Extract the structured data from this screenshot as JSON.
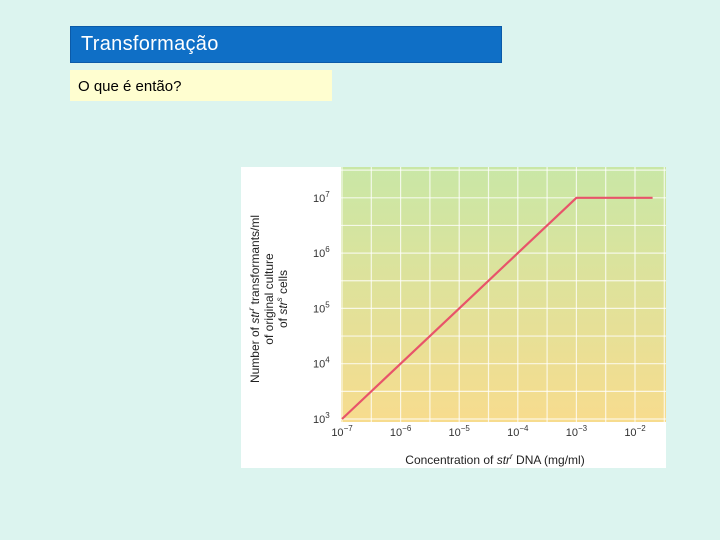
{
  "slide": {
    "title": "Transformação",
    "subtitle": "O que é então?"
  },
  "colors": {
    "background": "#dcf4ef",
    "title_bar": "#0f6fc6",
    "subtitle_box": "#fffed0",
    "line": "#e8546a",
    "plot_gradient_top": "#c9e7a6",
    "plot_gradient_bottom": "#f7dc8e"
  },
  "chart_data": {
    "type": "line",
    "title": "",
    "xlabel_parts": [
      "Concentration of ",
      "str",
      "r",
      " DNA (mg/ml)"
    ],
    "ylabel_lines": [
      [
        "Number of ",
        "str",
        "r",
        " transformants/ml"
      ],
      [
        "of original culture"
      ],
      [
        "of ",
        "str",
        "s",
        " cells"
      ]
    ],
    "x_scale": "log",
    "y_scale": "log",
    "x_ticks": [
      {
        "base": "10",
        "exp": "−7"
      },
      {
        "base": "10",
        "exp": "−6"
      },
      {
        "base": "10",
        "exp": "−5"
      },
      {
        "base": "10",
        "exp": "−4"
      },
      {
        "base": "10",
        "exp": "−3"
      },
      {
        "base": "10",
        "exp": "−2"
      }
    ],
    "y_ticks": [
      {
        "base": "10",
        "exp": "3"
      },
      {
        "base": "10",
        "exp": "4"
      },
      {
        "base": "10",
        "exp": "5"
      },
      {
        "base": "10",
        "exp": "6"
      },
      {
        "base": "10",
        "exp": "7"
      }
    ],
    "xlim": [
      1e-07,
      0.02
    ],
    "ylim": [
      1000,
      20000000
    ],
    "grid": true,
    "series": [
      {
        "x": [
          1e-07,
          1e-06,
          1e-05,
          0.0001,
          0.0007,
          0.001,
          0.0011,
          0.005,
          0.02
        ],
        "y": [
          1000,
          10000,
          100000,
          1000000,
          7000000,
          10000000,
          10000000,
          10000000,
          10000000
        ]
      }
    ]
  }
}
